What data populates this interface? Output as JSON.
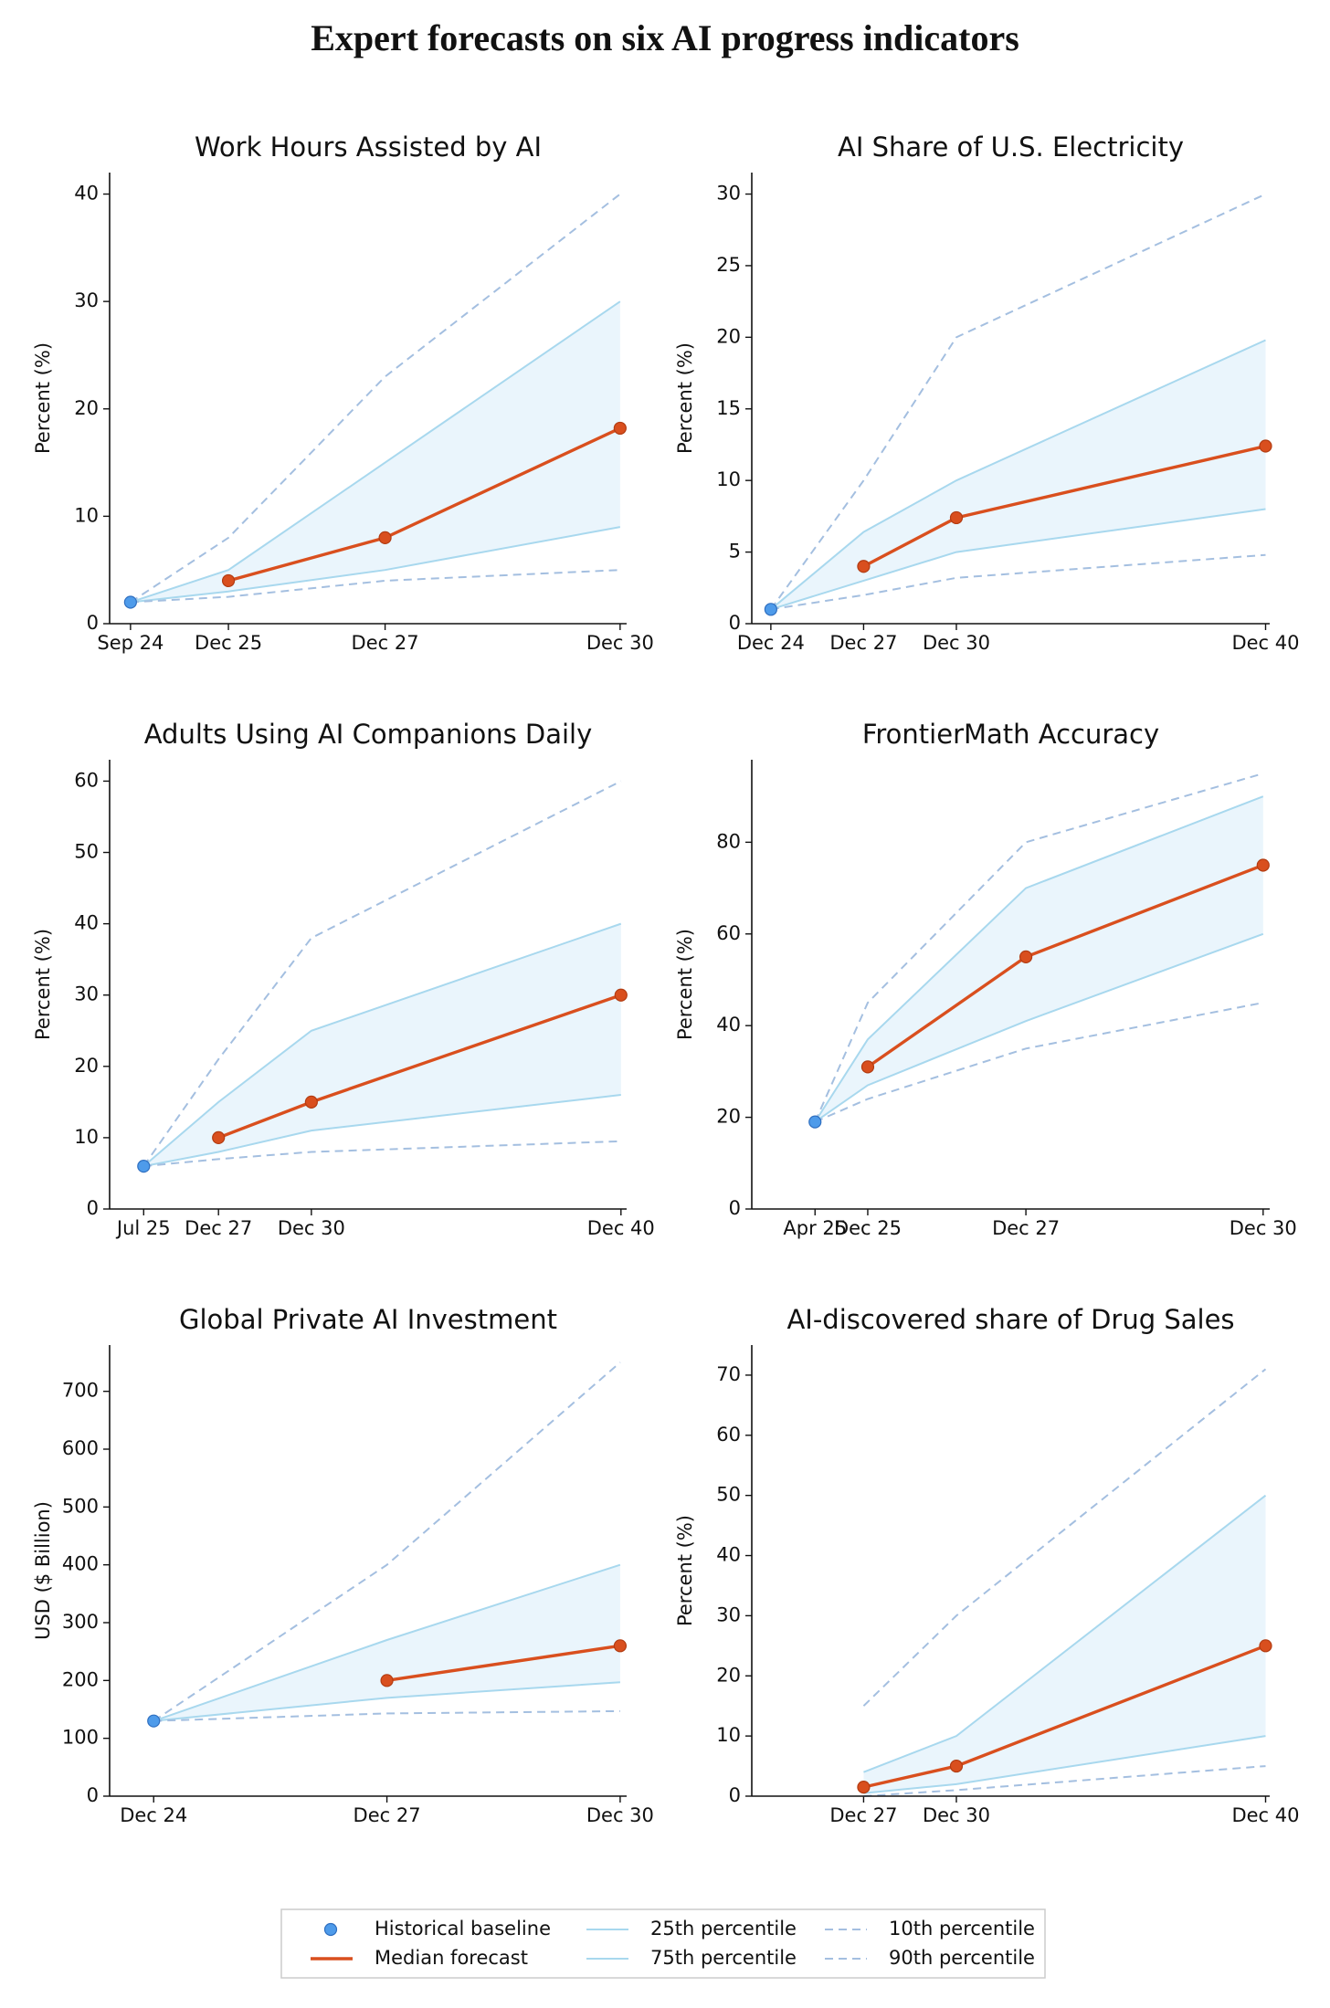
{
  "title": "Expert forecasts on six AI progress indicators",
  "chart_data": [
    {
      "type": "line",
      "title": "Work Hours Assisted by AI",
      "y_label": "Percent (%)",
      "x": [
        "Sep 24",
        "Dec 25",
        "Dec 27",
        "Dec 30"
      ],
      "xlim": [
        2024.4,
        2031.0
      ],
      "ylim": [
        0,
        42
      ],
      "yticks": [
        0,
        10,
        20,
        30,
        40
      ],
      "series": [
        {
          "name": "Historical baseline",
          "style": "point",
          "color": "#4e9bea",
          "values": [
            2,
            null,
            null,
            null
          ]
        },
        {
          "name": "Median forecast",
          "style": "line",
          "color": "#d94f1e",
          "values": [
            null,
            4,
            8,
            18.2
          ]
        },
        {
          "name": "25th percentile",
          "style": "band",
          "color": "#a8d8ee",
          "values": [
            2,
            3,
            5,
            9
          ]
        },
        {
          "name": "75th percentile",
          "style": "band",
          "color": "#a8d8ee",
          "values": [
            2,
            5,
            15,
            30
          ]
        },
        {
          "name": "10th percentile",
          "style": "dashed",
          "color": "#a4bfe0",
          "values": [
            2,
            2.5,
            4,
            5
          ]
        },
        {
          "name": "90th percentile",
          "style": "dashed",
          "color": "#a4bfe0",
          "values": [
            2,
            8,
            23,
            40
          ]
        }
      ]
    },
    {
      "type": "line",
      "title": "AI Share of U.S. Electricity",
      "y_label": "Percent (%)",
      "x": [
        "Dec 24",
        "Dec 27",
        "Dec 30",
        "Dec 40"
      ],
      "xlim": [
        2024.3,
        2041.05
      ],
      "ylim": [
        0,
        31.5
      ],
      "yticks": [
        0,
        5,
        10,
        15,
        20,
        25,
        30
      ],
      "series": [
        {
          "name": "Historical baseline",
          "style": "point",
          "color": "#4e9bea",
          "values": [
            1,
            null,
            null,
            null
          ]
        },
        {
          "name": "Median forecast",
          "style": "line",
          "color": "#d94f1e",
          "values": [
            null,
            4,
            7.4,
            12.4
          ]
        },
        {
          "name": "25th percentile",
          "style": "band",
          "color": "#a8d8ee",
          "values": [
            1,
            3,
            5,
            8
          ]
        },
        {
          "name": "75th percentile",
          "style": "band",
          "color": "#a8d8ee",
          "values": [
            1,
            6.4,
            10,
            19.8
          ]
        },
        {
          "name": "10th percentile",
          "style": "dashed",
          "color": "#a4bfe0",
          "values": [
            1,
            2,
            3.2,
            4.8
          ]
        },
        {
          "name": "90th percentile",
          "style": "dashed",
          "color": "#a4bfe0",
          "values": [
            1,
            10,
            20,
            30
          ]
        }
      ]
    },
    {
      "type": "line",
      "title": "Adults Using AI Companions Daily",
      "y_label": "Percent (%)",
      "x": [
        "Jul 25",
        "Dec 27",
        "Dec 30",
        "Dec 40"
      ],
      "xlim": [
        2024.4,
        2041.1
      ],
      "ylim": [
        0,
        63
      ],
      "yticks": [
        0,
        10,
        20,
        30,
        40,
        50,
        60
      ],
      "series": [
        {
          "name": "Historical baseline",
          "style": "point",
          "color": "#4e9bea",
          "values": [
            6,
            null,
            null,
            null
          ]
        },
        {
          "name": "Median forecast",
          "style": "line",
          "color": "#d94f1e",
          "values": [
            null,
            10,
            15,
            30
          ]
        },
        {
          "name": "25th percentile",
          "style": "band",
          "color": "#a8d8ee",
          "values": [
            6,
            8,
            11,
            16
          ]
        },
        {
          "name": "75th percentile",
          "style": "band",
          "color": "#a8d8ee",
          "values": [
            6,
            15,
            25,
            40
          ]
        },
        {
          "name": "10th percentile",
          "style": "dashed",
          "color": "#a4bfe0",
          "values": [
            6,
            7,
            8,
            9.5
          ]
        },
        {
          "name": "90th percentile",
          "style": "dashed",
          "color": "#a4bfe0",
          "values": [
            6,
            21,
            38,
            60
          ]
        }
      ]
    },
    {
      "type": "line",
      "title": "FrontierMath Accuracy",
      "y_label": "Percent (%)",
      "x": [
        "Apr 25",
        "Dec 25",
        "Dec 27",
        "Dec 30"
      ],
      "xlim": [
        2024.45,
        2031.0
      ],
      "ylim": [
        0,
        98
      ],
      "yticks": [
        0,
        20,
        40,
        60,
        80
      ],
      "series": [
        {
          "name": "Historical baseline",
          "style": "point",
          "color": "#4e9bea",
          "values": [
            19,
            null,
            null,
            null
          ]
        },
        {
          "name": "Median forecast",
          "style": "line",
          "color": "#d94f1e",
          "values": [
            null,
            31,
            55,
            75
          ]
        },
        {
          "name": "25th percentile",
          "style": "band",
          "color": "#a8d8ee",
          "values": [
            19,
            27,
            41,
            60
          ]
        },
        {
          "name": "75th percentile",
          "style": "band",
          "color": "#a8d8ee",
          "values": [
            19,
            37,
            70,
            90
          ]
        },
        {
          "name": "10th percentile",
          "style": "dashed",
          "color": "#a4bfe0",
          "values": [
            19,
            24,
            35,
            45
          ]
        },
        {
          "name": "90th percentile",
          "style": "dashed",
          "color": "#a4bfe0",
          "values": [
            19,
            45,
            80,
            95
          ]
        }
      ]
    },
    {
      "type": "line",
      "title": "Global Private AI Investment",
      "y_label": "USD ($ Billion)",
      "x": [
        "Dec 24",
        "Dec 27",
        "Dec 30"
      ],
      "xlim": [
        2024.35,
        2031.0
      ],
      "ylim": [
        0,
        780
      ],
      "yticks": [
        0,
        100,
        200,
        300,
        400,
        500,
        600,
        700
      ],
      "series": [
        {
          "name": "Historical baseline",
          "style": "point",
          "color": "#4e9bea",
          "values": [
            130,
            null,
            null
          ]
        },
        {
          "name": "Median forecast",
          "style": "line",
          "color": "#d94f1e",
          "values": [
            null,
            200,
            260
          ]
        },
        {
          "name": "25th percentile",
          "style": "band",
          "color": "#a8d8ee",
          "values": [
            130,
            170,
            197
          ]
        },
        {
          "name": "75th percentile",
          "style": "band",
          "color": "#a8d8ee",
          "values": [
            130,
            270,
            400
          ]
        },
        {
          "name": "10th percentile",
          "style": "dashed",
          "color": "#a4bfe0",
          "values": [
            130,
            143,
            147
          ]
        },
        {
          "name": "90th percentile",
          "style": "dashed",
          "color": "#a4bfe0",
          "values": [
            130,
            400,
            750
          ]
        }
      ]
    },
    {
      "type": "line",
      "title": "AI-discovered share of Drug Sales",
      "y_label": "Percent (%)",
      "x": [
        "Dec 27",
        "Dec 30",
        "Dec 40"
      ],
      "xlim": [
        2024.3,
        2041.05
      ],
      "ylim": [
        0,
        75
      ],
      "yticks": [
        0,
        10,
        20,
        30,
        40,
        50,
        60,
        70
      ],
      "series": [
        {
          "name": "Median forecast",
          "style": "line",
          "color": "#d94f1e",
          "values": [
            1.5,
            5,
            25
          ]
        },
        {
          "name": "25th percentile",
          "style": "band",
          "color": "#a8d8ee",
          "values": [
            0.5,
            2,
            10
          ]
        },
        {
          "name": "75th percentile",
          "style": "band",
          "color": "#a8d8ee",
          "values": [
            4,
            10,
            50
          ]
        },
        {
          "name": "10th percentile",
          "style": "dashed",
          "color": "#a4bfe0",
          "values": [
            0,
            1,
            5
          ]
        },
        {
          "name": "90th percentile",
          "style": "dashed",
          "color": "#a4bfe0",
          "values": [
            15,
            30,
            71
          ]
        }
      ]
    }
  ],
  "band_color": "#eaf5fc"
}
